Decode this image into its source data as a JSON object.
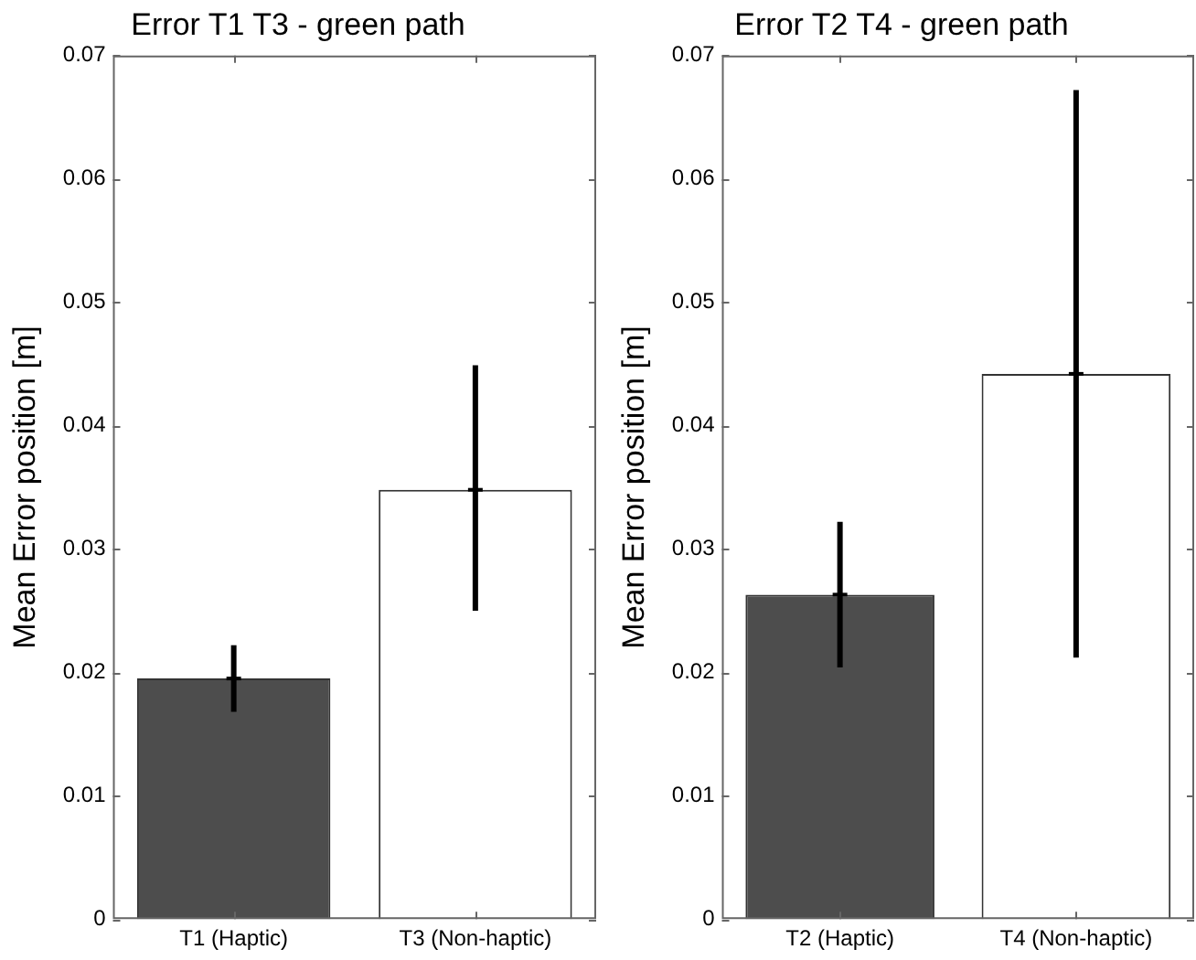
{
  "chart_data": [
    {
      "type": "bar",
      "title": "Error T1 T3 - green path",
      "ylabel": "Mean Error position [m]",
      "categories": [
        "T1 (Haptic)",
        "T3 (Non-haptic)"
      ],
      "values": [
        0.0195,
        0.0348
      ],
      "colors": [
        "#4d4d4d",
        "#ffffff"
      ],
      "errors": [
        [
          0.0168,
          0.0222
        ],
        [
          0.025,
          0.0449
        ]
      ],
      "ylim": [
        0,
        0.07
      ],
      "yticks": [
        0,
        0.01,
        0.02,
        0.03,
        0.04,
        0.05,
        0.06,
        0.07
      ],
      "grid": false,
      "legend": false
    },
    {
      "type": "bar",
      "title": "Error T2 T4 - green path",
      "ylabel": "Mean Error position [m]",
      "categories": [
        "T2 (Haptic)",
        "T4 (Non-haptic)"
      ],
      "values": [
        0.0263,
        0.0442
      ],
      "colors": [
        "#4d4d4d",
        "#ffffff"
      ],
      "errors": [
        [
          0.0204,
          0.0322
        ],
        [
          0.0212,
          0.0672
        ]
      ],
      "ylim": [
        0,
        0.07
      ],
      "yticks": [
        0,
        0.01,
        0.02,
        0.03,
        0.04,
        0.05,
        0.06,
        0.07
      ],
      "grid": false,
      "legend": false
    }
  ]
}
